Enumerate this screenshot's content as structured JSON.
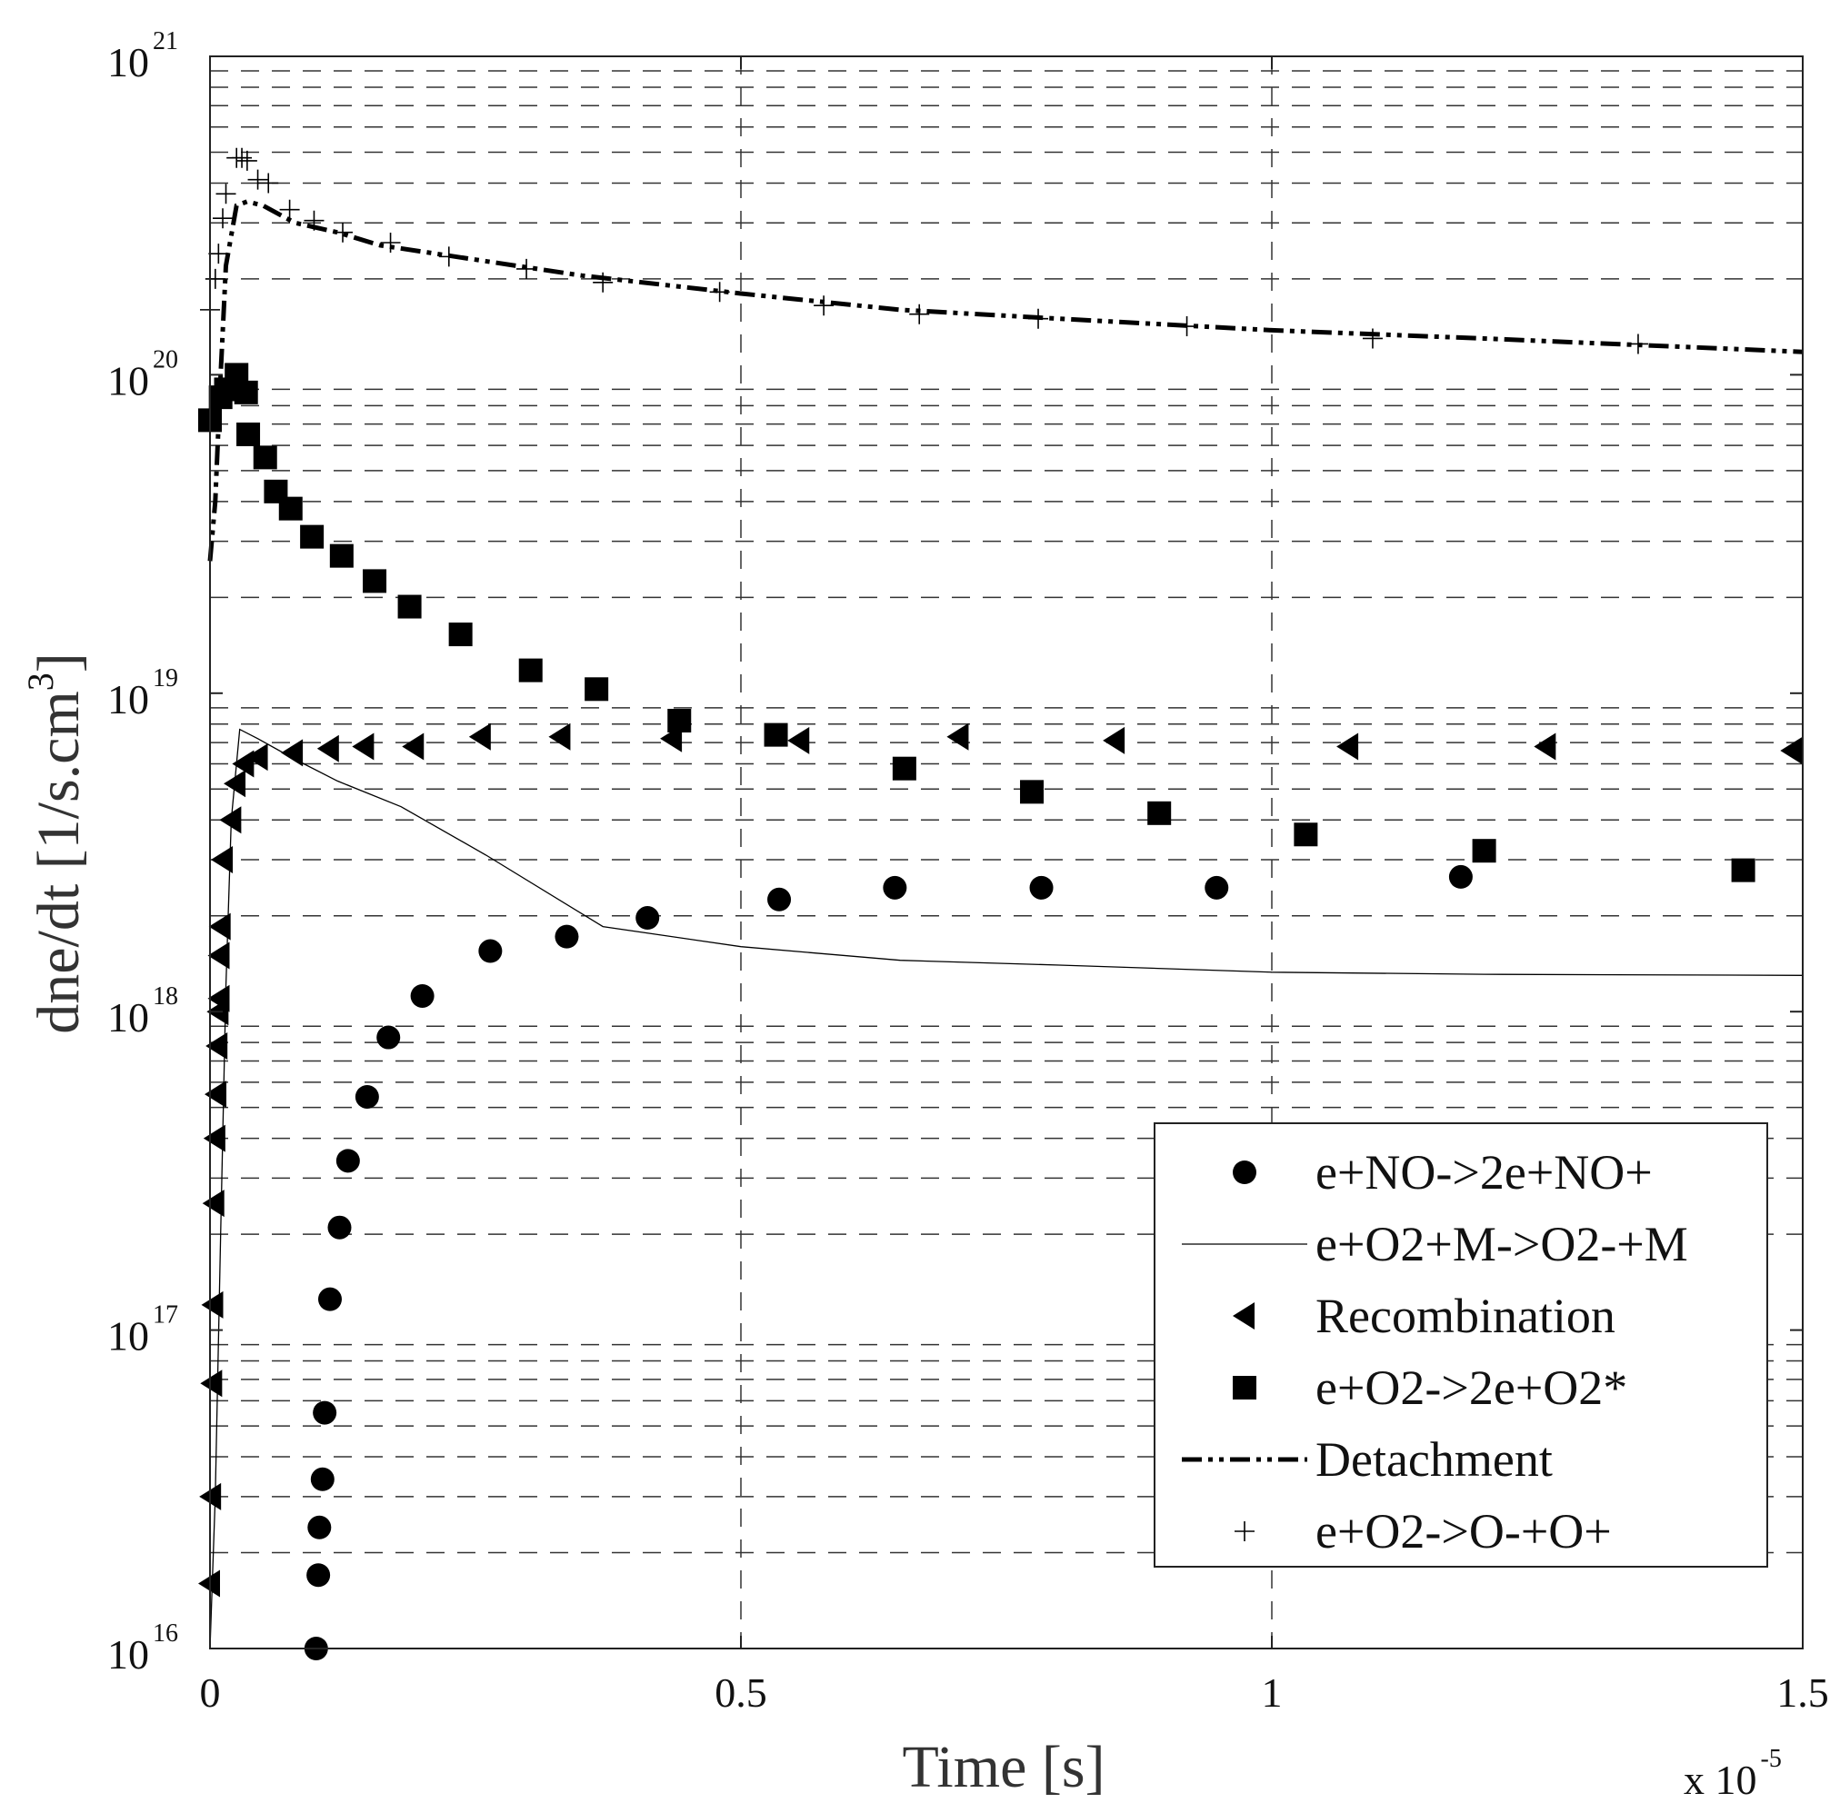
{
  "chart_data": {
    "type": "line",
    "title": "",
    "xlabel": "Time [s]",
    "ylabel_main": "dne/dt [1/s.cm",
    "ylabel_sup": "3",
    "ylabel_close": "]",
    "xlim": [
      0,
      1.5
    ],
    "ylim_log10": [
      16,
      21
    ],
    "y_scale": "log",
    "grid": "dashed",
    "x_multiplier": {
      "base": "x 10",
      "exp": "-5"
    },
    "x_ticks": [
      {
        "v": 0,
        "label": "0"
      },
      {
        "v": 0.5,
        "label": "0.5"
      },
      {
        "v": 1,
        "label": "1"
      },
      {
        "v": 1.5,
        "label": "1.5"
      }
    ],
    "y_ticks": [
      {
        "e": 16,
        "base": "10",
        "exp": "16"
      },
      {
        "e": 17,
        "base": "10",
        "exp": "17"
      },
      {
        "e": 18,
        "base": "10",
        "exp": "18"
      },
      {
        "e": 19,
        "base": "10",
        "exp": "19"
      },
      {
        "e": 20,
        "base": "10",
        "exp": "20"
      },
      {
        "e": 21,
        "base": "10",
        "exp": "21"
      }
    ],
    "legend_position": "bottom-right",
    "series": [
      {
        "name": "e+NO->2e+NO+",
        "marker": "circle",
        "line": "none",
        "points": [
          [
            0.1,
            1e+16
          ],
          [
            0.102,
            1.7e+16
          ],
          [
            0.103,
            2.4e+16
          ],
          [
            0.106,
            3.4e+16
          ],
          [
            0.108,
            5.5e+16
          ],
          [
            0.113,
            1.25e+17
          ],
          [
            0.122,
            2.1e+17
          ],
          [
            0.13,
            3.4e+17
          ],
          [
            0.148,
            5.4e+17
          ],
          [
            0.168,
            8.3e+17
          ],
          [
            0.2,
            1.12e+18
          ],
          [
            0.264,
            1.55e+18
          ],
          [
            0.336,
            1.72e+18
          ],
          [
            0.412,
            1.97e+18
          ],
          [
            0.536,
            2.25e+18
          ],
          [
            0.645,
            2.45e+18
          ],
          [
            0.783,
            2.45e+18
          ],
          [
            0.948,
            2.45e+18
          ],
          [
            1.178,
            2.65e+18
          ]
        ]
      },
      {
        "name": "e+O2+M->O2-+M",
        "marker": "none",
        "line": "thin-solid",
        "points": [
          [
            0.0,
            1e+16
          ],
          [
            0.005,
            3e+16
          ],
          [
            0.01,
            2e+17
          ],
          [
            0.015,
            1.2e+18
          ],
          [
            0.02,
            4e+18
          ],
          [
            0.028,
            7.7e+18
          ],
          [
            0.045,
            7.2e+18
          ],
          [
            0.08,
            6.2e+18
          ],
          [
            0.12,
            5.3e+18
          ],
          [
            0.18,
            4.4e+18
          ],
          [
            0.26,
            3.1e+18
          ],
          [
            0.37,
            1.85e+18
          ],
          [
            0.5,
            1.6e+18
          ],
          [
            0.65,
            1.45e+18
          ],
          [
            0.8,
            1.4e+18
          ],
          [
            1.0,
            1.33e+18
          ],
          [
            1.2,
            1.31e+18
          ],
          [
            1.5,
            1.3e+18
          ]
        ]
      },
      {
        "name": "Recombination",
        "marker": "triangle-left",
        "line": "none",
        "points": [
          [
            0.0,
            1.6e+16
          ],
          [
            0.001,
            3e+16
          ],
          [
            0.002,
            6.8e+16
          ],
          [
            0.003,
            1.2e+17
          ],
          [
            0.004,
            2.5e+17
          ],
          [
            0.005,
            4e+17
          ],
          [
            0.006,
            5.5e+17
          ],
          [
            0.007,
            7.8e+17
          ],
          [
            0.008,
            1e+18
          ],
          [
            0.009,
            1.1e+18
          ],
          [
            0.009,
            1.5e+18
          ],
          [
            0.01,
            1.85e+18
          ],
          [
            0.012,
            3e+18
          ],
          [
            0.02,
            4e+18
          ],
          [
            0.024,
            5.2e+18
          ],
          [
            0.032,
            6e+18
          ],
          [
            0.045,
            6.3e+18
          ],
          [
            0.078,
            6.5e+18
          ],
          [
            0.112,
            6.7e+18
          ],
          [
            0.145,
            6.8e+18
          ],
          [
            0.192,
            6.8e+18
          ],
          [
            0.255,
            7.3e+18
          ],
          [
            0.33,
            7.3e+18
          ],
          [
            0.435,
            7.2e+18
          ],
          [
            0.555,
            7.1e+18
          ],
          [
            0.705,
            7.3e+18
          ],
          [
            0.852,
            7.1e+18
          ],
          [
            1.072,
            6.8e+18
          ],
          [
            1.258,
            6.8e+18
          ],
          [
            1.49,
            6.6e+18
          ]
        ]
      },
      {
        "name": "e+O2->2e+O2*",
        "marker": "square",
        "line": "none",
        "points": [
          [
            0.0,
            7.2e+19
          ],
          [
            0.01,
            8.5e+19
          ],
          [
            0.015,
            9e+19
          ],
          [
            0.025,
            1e+20
          ],
          [
            0.034,
            8.8e+19
          ],
          [
            0.036,
            6.5e+19
          ],
          [
            0.052,
            5.5e+19
          ],
          [
            0.062,
            4.3e+19
          ],
          [
            0.076,
            3.8e+19
          ],
          [
            0.096,
            3.1e+19
          ],
          [
            0.124,
            2.7e+19
          ],
          [
            0.155,
            2.25e+19
          ],
          [
            0.188,
            1.87e+19
          ],
          [
            0.236,
            1.53e+19
          ],
          [
            0.302,
            1.18e+19
          ],
          [
            0.364,
            1.03e+19
          ],
          [
            0.442,
            8.2e+18
          ],
          [
            0.533,
            7.4e+18
          ],
          [
            0.654,
            5.8e+18
          ],
          [
            0.774,
            4.9e+18
          ],
          [
            0.894,
            4.2e+18
          ],
          [
            1.032,
            3.6e+18
          ],
          [
            1.2,
            3.2e+18
          ],
          [
            1.444,
            2.78e+18
          ]
        ]
      },
      {
        "name": "Detachment",
        "marker": "none",
        "line": "dash-dot-dot-bold",
        "points": [
          [
            0.0,
            2.6e+19
          ],
          [
            0.005,
            4e+19
          ],
          [
            0.01,
            1e+20
          ],
          [
            0.015,
            2.2e+20
          ],
          [
            0.025,
            3.4e+20
          ],
          [
            0.035,
            3.5e+20
          ],
          [
            0.05,
            3.4e+20
          ],
          [
            0.08,
            3e+20
          ],
          [
            0.12,
            2.8e+20
          ],
          [
            0.16,
            2.55e+20
          ],
          [
            0.25,
            2.3e+20
          ],
          [
            0.35,
            2.05e+20
          ],
          [
            0.5,
            1.8e+20
          ],
          [
            0.65,
            1.6e+20
          ],
          [
            0.8,
            1.5e+20
          ],
          [
            1.0,
            1.38e+20
          ],
          [
            1.2,
            1.3e+20
          ],
          [
            1.5,
            1.18e+20
          ]
        ]
      },
      {
        "name": "e+O2->O-+O+",
        "marker": "plus",
        "line": "none",
        "points": [
          [
            0.0,
            1.6e+20
          ],
          [
            0.005,
            2e+20
          ],
          [
            0.008,
            2.4e+20
          ],
          [
            0.012,
            3.1e+20
          ],
          [
            0.015,
            3.7e+20
          ],
          [
            0.025,
            4.8e+20
          ],
          [
            0.03,
            4.8e+20
          ],
          [
            0.035,
            4.7e+20
          ],
          [
            0.045,
            4.1e+20
          ],
          [
            0.055,
            4e+20
          ],
          [
            0.075,
            3.3e+20
          ],
          [
            0.098,
            3.05e+20
          ],
          [
            0.125,
            2.8e+20
          ],
          [
            0.17,
            2.6e+20
          ],
          [
            0.225,
            2.35e+20
          ],
          [
            0.298,
            2.15e+20
          ],
          [
            0.37,
            1.95e+20
          ],
          [
            0.48,
            1.82e+20
          ],
          [
            0.578,
            1.65e+20
          ],
          [
            0.668,
            1.55e+20
          ],
          [
            0.78,
            1.5e+20
          ],
          [
            0.92,
            1.42e+20
          ],
          [
            1.095,
            1.3e+20
          ],
          [
            1.345,
            1.25e+20
          ]
        ]
      }
    ]
  }
}
